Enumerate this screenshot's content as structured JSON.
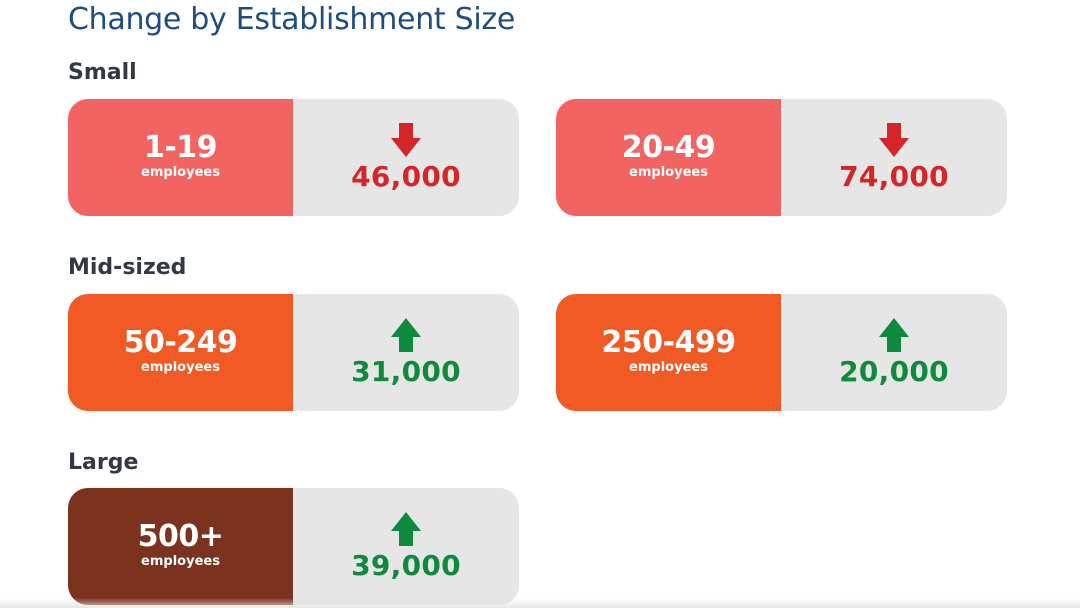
{
  "title": "Change by Establishment Size",
  "sections": {
    "small": {
      "label": "Small"
    },
    "mid": {
      "label": "Mid-sized"
    },
    "large": {
      "label": "Large"
    }
  },
  "cards": [
    {
      "range": "1-19",
      "unit": "employees",
      "direction": "down",
      "value": "46,000",
      "color": "#f26462"
    },
    {
      "range": "20-49",
      "unit": "employees",
      "direction": "down",
      "value": "74,000",
      "color": "#f26462"
    },
    {
      "range": "50-249",
      "unit": "employees",
      "direction": "up",
      "value": "31,000",
      "color": "#f15a24"
    },
    {
      "range": "250-499",
      "unit": "employees",
      "direction": "up",
      "value": "20,000",
      "color": "#f15a24"
    },
    {
      "range": "500+",
      "unit": "employees",
      "direction": "up",
      "value": "39,000",
      "color": "#7b3320"
    }
  ],
  "colors": {
    "title": "#1d4e7f",
    "section_title": "#333846",
    "panel_bg": "#e6e6e6",
    "decrease": "#d42528",
    "increase": "#0d8a3b"
  },
  "icons": {
    "down": "arrow-down-icon",
    "up": "arrow-up-icon"
  }
}
